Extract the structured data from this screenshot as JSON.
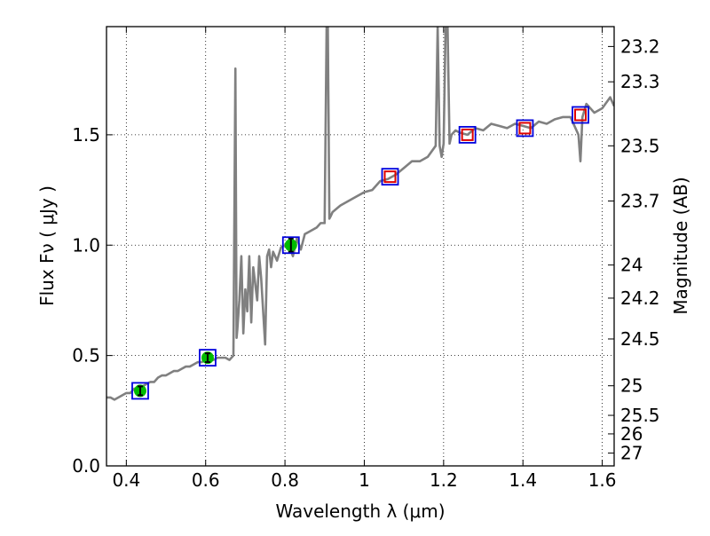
{
  "chart_data": {
    "type": "line",
    "xlabel": "Wavelength  λ (μm)",
    "ylabel": "Flux  Fν  ( μJy )",
    "y2label": "Magnitude (AB)",
    "xlim": [
      0.35,
      1.63
    ],
    "ylim": [
      0.0,
      1.99
    ],
    "grid": true,
    "x_ticks": [
      0.4,
      0.6,
      0.8,
      1.0,
      1.2,
      1.4,
      1.6
    ],
    "x_tick_labels": [
      "0.4",
      "0.6",
      "0.8",
      "1",
      "1.2",
      "1.4",
      "1.6"
    ],
    "y_ticks": [
      0.0,
      0.5,
      1.0,
      1.5
    ],
    "y_tick_labels": [
      "0.0",
      "0.5",
      "1.0",
      "1.5"
    ],
    "y2_ticks": [
      {
        "label": "23.2",
        "flux": 1.9
      },
      {
        "label": "23.3",
        "flux": 1.74
      },
      {
        "label": "23.5",
        "flux": 1.45
      },
      {
        "label": "23.7",
        "flux": 1.2
      },
      {
        "label": "24",
        "flux": 0.91
      },
      {
        "label": "24.2",
        "flux": 0.76
      },
      {
        "label": "24.5",
        "flux": 0.575
      },
      {
        "label": "25",
        "flux": 0.363
      },
      {
        "label": "25.5",
        "flux": 0.229
      },
      {
        "label": "26",
        "flux": 0.145
      },
      {
        "label": "27",
        "flux": 0.058
      }
    ],
    "series": [
      {
        "role": "model_spectrum",
        "color": "#808080",
        "x": [
          0.35,
          0.36,
          0.37,
          0.38,
          0.39,
          0.4,
          0.41,
          0.42,
          0.43,
          0.44,
          0.45,
          0.46,
          0.47,
          0.48,
          0.49,
          0.5,
          0.51,
          0.52,
          0.53,
          0.54,
          0.55,
          0.56,
          0.57,
          0.58,
          0.59,
          0.6,
          0.61,
          0.62,
          0.63,
          0.64,
          0.65,
          0.66,
          0.67,
          0.675,
          0.678,
          0.68,
          0.685,
          0.69,
          0.695,
          0.7,
          0.705,
          0.71,
          0.715,
          0.72,
          0.73,
          0.735,
          0.74,
          0.75,
          0.755,
          0.76,
          0.765,
          0.77,
          0.78,
          0.79,
          0.8,
          0.81,
          0.82,
          0.83,
          0.84,
          0.85,
          0.86,
          0.87,
          0.88,
          0.89,
          0.9,
          0.905,
          0.908,
          0.912,
          0.915,
          0.92,
          0.94,
          0.96,
          0.98,
          1.0,
          1.02,
          1.04,
          1.06,
          1.08,
          1.1,
          1.12,
          1.14,
          1.16,
          1.18,
          1.185,
          1.19,
          1.195,
          1.2,
          1.205,
          1.21,
          1.215,
          1.22,
          1.225,
          1.23,
          1.24,
          1.26,
          1.28,
          1.3,
          1.32,
          1.34,
          1.36,
          1.38,
          1.4,
          1.42,
          1.44,
          1.46,
          1.48,
          1.5,
          1.52,
          1.54,
          1.545,
          1.55,
          1.56,
          1.58,
          1.6,
          1.62,
          1.63
        ],
        "values": [
          0.31,
          0.31,
          0.3,
          0.31,
          0.32,
          0.33,
          0.33,
          0.35,
          0.35,
          0.36,
          0.37,
          0.38,
          0.38,
          0.4,
          0.41,
          0.41,
          0.42,
          0.43,
          0.43,
          0.44,
          0.45,
          0.45,
          0.46,
          0.47,
          0.47,
          0.48,
          0.48,
          0.48,
          0.49,
          0.49,
          0.49,
          0.48,
          0.5,
          1.8,
          0.58,
          0.62,
          0.75,
          0.95,
          0.6,
          0.8,
          0.7,
          0.95,
          0.65,
          0.9,
          0.75,
          0.95,
          0.85,
          0.55,
          0.95,
          0.98,
          0.9,
          0.97,
          0.93,
          0.99,
          1.0,
          1.0,
          0.95,
          1.03,
          0.98,
          1.05,
          1.06,
          1.07,
          1.08,
          1.1,
          1.1,
          1.99,
          1.99,
          1.12,
          1.13,
          1.15,
          1.18,
          1.2,
          1.22,
          1.24,
          1.25,
          1.29,
          1.3,
          1.32,
          1.35,
          1.38,
          1.38,
          1.4,
          1.45,
          1.99,
          1.45,
          1.4,
          1.46,
          1.99,
          1.99,
          1.46,
          1.5,
          1.51,
          1.52,
          1.51,
          1.5,
          1.53,
          1.52,
          1.55,
          1.54,
          1.53,
          1.55,
          1.54,
          1.53,
          1.56,
          1.55,
          1.57,
          1.58,
          1.58,
          1.5,
          1.38,
          1.58,
          1.64,
          1.6,
          1.62,
          1.67,
          1.63
        ]
      },
      {
        "role": "observed_photometry",
        "marker": "circle",
        "color": "#00bb00",
        "x": [
          0.435,
          0.605,
          0.815
        ],
        "values": [
          0.34,
          0.49,
          1.0
        ],
        "errors": [
          0.02,
          0.02,
          0.03
        ]
      },
      {
        "role": "model_photometry",
        "marker": "square",
        "color": "#0000dd",
        "x": [
          0.435,
          0.605,
          0.815,
          1.065,
          1.26,
          1.405,
          1.545
        ],
        "values": [
          0.34,
          0.49,
          1.0,
          1.31,
          1.5,
          1.53,
          1.59
        ]
      },
      {
        "role": "predicted_photometry",
        "marker": "square",
        "color": "#dd0000",
        "x": [
          1.065,
          1.26,
          1.405,
          1.545
        ],
        "values": [
          1.31,
          1.5,
          1.53,
          1.59
        ]
      }
    ]
  }
}
